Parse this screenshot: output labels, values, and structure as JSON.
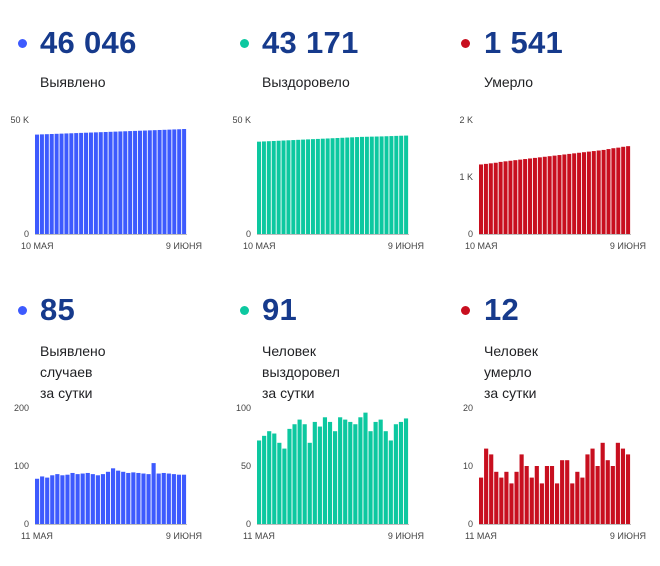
{
  "panels": [
    {
      "value": "46 046",
      "label": "Выявлено",
      "color": "#3d5afe"
    },
    {
      "value": "43 171",
      "label": "Выздоровело",
      "color": "#0cc8a0"
    },
    {
      "value": "1 541",
      "label": "Умерло",
      "color": "#c80f1f"
    },
    {
      "value": "85",
      "label": "Выявлено случаев\nза сутки",
      "color": "#3d5afe"
    },
    {
      "value": "91",
      "label": "Человек выздоровел\nза сутки",
      "color": "#0cc8a0"
    },
    {
      "value": "12",
      "label": "Человек умерло\nза сутки",
      "color": "#c80f1f"
    }
  ],
  "chart_data": [
    {
      "type": "bar",
      "series": [
        {
          "values": [
            43600,
            43700,
            43780,
            43860,
            43940,
            44020,
            44100,
            44180,
            44260,
            44340,
            44420,
            44500,
            44580,
            44660,
            44740,
            44820,
            44900,
            44980,
            45060,
            45140,
            45220,
            45300,
            45380,
            45460,
            45540,
            45620,
            45700,
            45780,
            45860,
            45940,
            46046
          ]
        }
      ],
      "x_start_label": "10 МАЯ",
      "x_end_label": "9 ИЮНЯ",
      "ylim": [
        0,
        50000
      ],
      "yticks": [
        {
          "v": 0,
          "t": "0"
        },
        {
          "v": 50000,
          "t": "50 K"
        }
      ],
      "grid": false
    },
    {
      "type": "bar",
      "series": [
        {
          "values": [
            40500,
            40600,
            40700,
            40800,
            40900,
            41000,
            41100,
            41200,
            41300,
            41400,
            41500,
            41600,
            41700,
            41800,
            41900,
            42000,
            42100,
            42200,
            42300,
            42400,
            42500,
            42600,
            42650,
            42700,
            42750,
            42800,
            42880,
            42950,
            43030,
            43100,
            43171
          ]
        }
      ],
      "x_start_label": "10 МАЯ",
      "x_end_label": "9 ИЮНЯ",
      "ylim": [
        0,
        50000
      ],
      "yticks": [
        {
          "v": 0,
          "t": "0"
        },
        {
          "v": 50000,
          "t": "50 K"
        }
      ],
      "grid": false
    },
    {
      "type": "bar",
      "series": [
        {
          "values": [
            1220,
            1230,
            1240,
            1250,
            1265,
            1275,
            1285,
            1295,
            1305,
            1315,
            1325,
            1335,
            1345,
            1355,
            1365,
            1375,
            1385,
            1395,
            1405,
            1415,
            1425,
            1435,
            1445,
            1455,
            1465,
            1475,
            1490,
            1505,
            1515,
            1530,
            1541
          ]
        }
      ],
      "x_start_label": "10 МАЯ",
      "x_end_label": "9 ИЮНЯ",
      "ylim": [
        0,
        2000
      ],
      "yticks": [
        {
          "v": 0,
          "t": "0"
        },
        {
          "v": 1000,
          "t": "1 K"
        },
        {
          "v": 2000,
          "t": "2 K"
        }
      ],
      "grid": false
    },
    {
      "type": "bar",
      "series": [
        {
          "values": [
            78,
            82,
            80,
            84,
            86,
            84,
            85,
            88,
            86,
            87,
            88,
            86,
            84,
            86,
            90,
            96,
            92,
            90,
            88,
            89,
            88,
            87,
            86,
            105,
            87,
            88,
            87,
            86,
            85,
            85
          ]
        }
      ],
      "x_start_label": "11 МАЯ",
      "x_end_label": "9 ИЮНЯ",
      "ylim": [
        0,
        200
      ],
      "yticks": [
        {
          "v": 0,
          "t": "0"
        },
        {
          "v": 100,
          "t": "100"
        },
        {
          "v": 200,
          "t": "200"
        }
      ],
      "grid": false
    },
    {
      "type": "bar",
      "series": [
        {
          "values": [
            72,
            76,
            80,
            78,
            70,
            65,
            82,
            86,
            90,
            86,
            70,
            88,
            84,
            92,
            88,
            80,
            92,
            90,
            88,
            86,
            92,
            96,
            80,
            88,
            90,
            80,
            72,
            86,
            88,
            91
          ]
        }
      ],
      "x_start_label": "11 МАЯ",
      "x_end_label": "9 ИЮНЯ",
      "ylim": [
        0,
        100
      ],
      "yticks": [
        {
          "v": 0,
          "t": "0"
        },
        {
          "v": 50,
          "t": "50"
        },
        {
          "v": 100,
          "t": "100"
        }
      ],
      "grid": false
    },
    {
      "type": "bar",
      "series": [
        {
          "values": [
            8,
            13,
            12,
            9,
            8,
            9,
            7,
            9,
            12,
            10,
            8,
            10,
            7,
            10,
            10,
            7,
            11,
            11,
            7,
            9,
            8,
            12,
            13,
            10,
            14,
            11,
            10,
            14,
            13,
            12
          ]
        }
      ],
      "x_start_label": "11 МАЯ",
      "x_end_label": "9 ИЮНЯ",
      "ylim": [
        0,
        20
      ],
      "yticks": [
        {
          "v": 0,
          "t": "0"
        },
        {
          "v": 10,
          "t": "10"
        },
        {
          "v": 20,
          "t": "20"
        }
      ],
      "grid": false
    }
  ]
}
